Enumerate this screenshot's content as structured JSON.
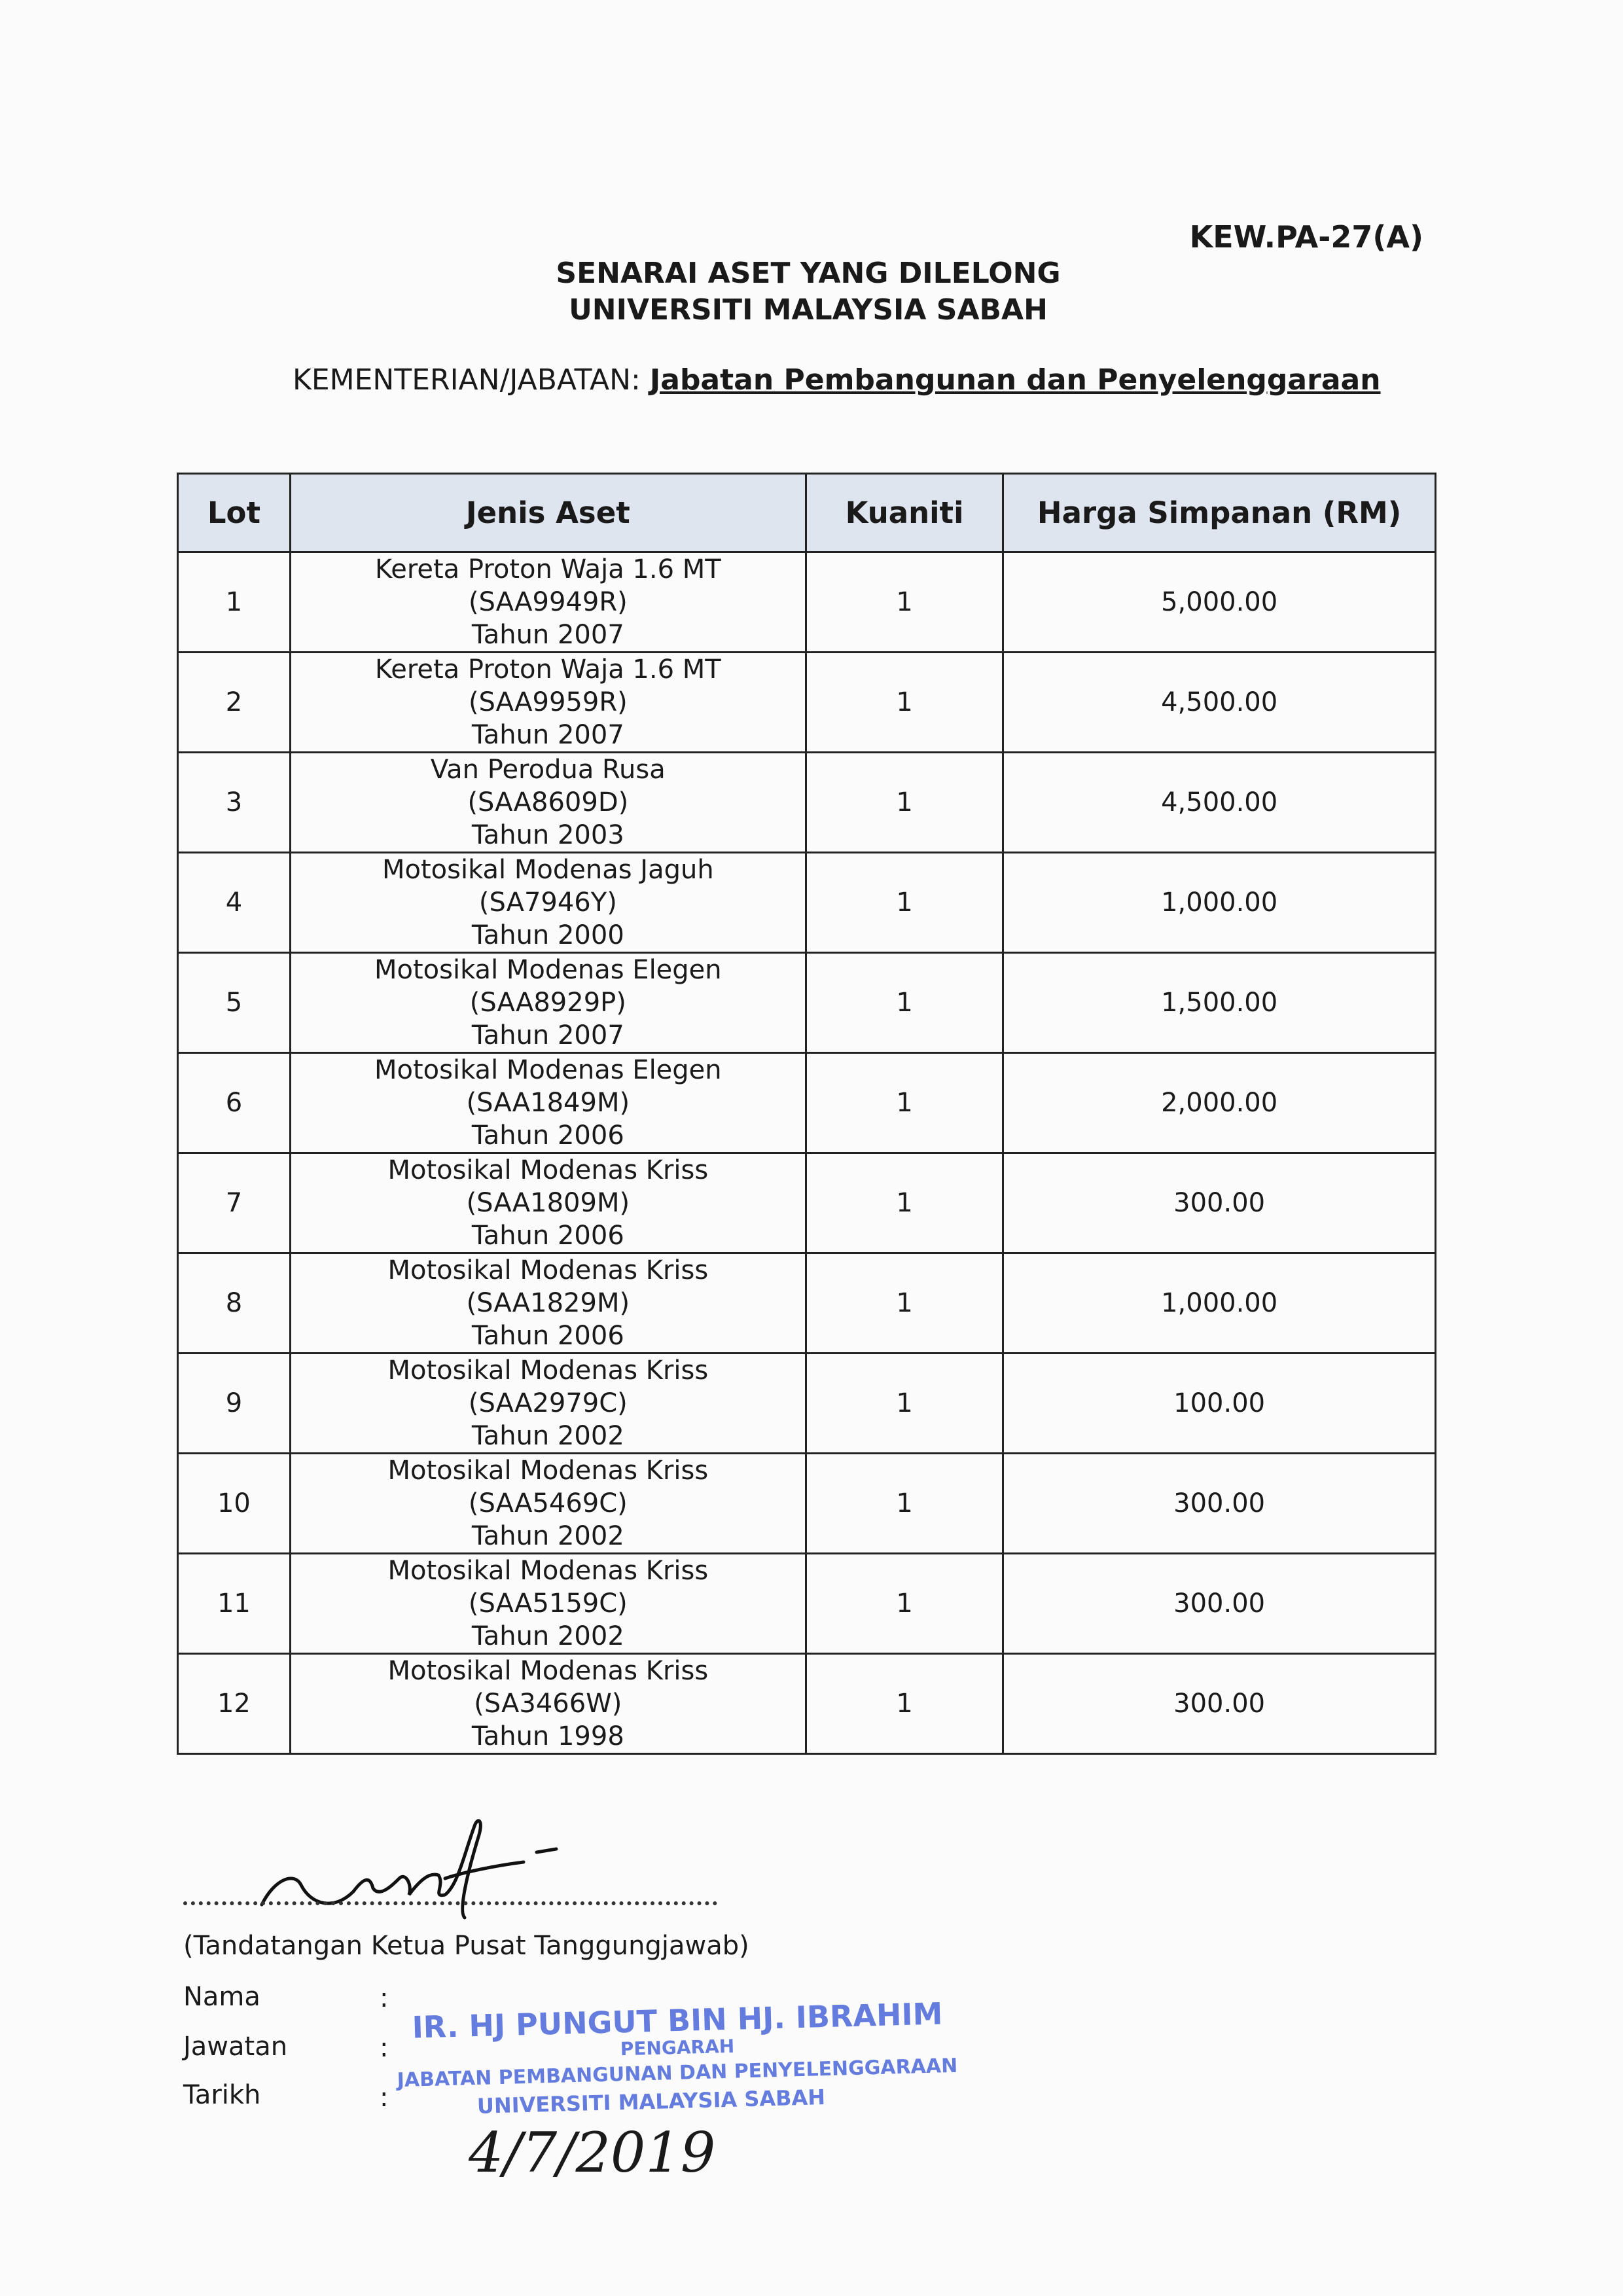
{
  "form_code": "KEW.PA-27(A)",
  "title_line1": "SENARAI ASET YANG DILELONG",
  "title_line2": "UNIVERSITI MALAYSIA SABAH",
  "department": {
    "label": "KEMENTERIAN/JABATAN:",
    "value": "Jabatan Pembangunan dan Penyelenggaraan"
  },
  "table": {
    "headers": [
      "Lot",
      "Jenis Aset",
      "Kuaniti",
      "Harga Simpanan (RM)"
    ],
    "rows": [
      {
        "lot": "1",
        "name": "Kereta Proton Waja 1.6 MT",
        "reg": "(SAA9949R)",
        "year": "Tahun 2007",
        "qty": "1",
        "price": "5,000.00"
      },
      {
        "lot": "2",
        "name": "Kereta Proton Waja 1.6 MT",
        "reg": "(SAA9959R)",
        "year": "Tahun 2007",
        "qty": "1",
        "price": "4,500.00"
      },
      {
        "lot": "3",
        "name": "Van Perodua Rusa",
        "reg": "(SAA8609D)",
        "year": "Tahun 2003",
        "qty": "1",
        "price": "4,500.00"
      },
      {
        "lot": "4",
        "name": "Motosikal Modenas Jaguh",
        "reg": "(SA7946Y)",
        "year": "Tahun 2000",
        "qty": "1",
        "price": "1,000.00"
      },
      {
        "lot": "5",
        "name": "Motosikal Modenas Elegen",
        "reg": "(SAA8929P)",
        "year": "Tahun 2007",
        "qty": "1",
        "price": "1,500.00"
      },
      {
        "lot": "6",
        "name": "Motosikal Modenas Elegen",
        "reg": "(SAA1849M)",
        "year": "Tahun 2006",
        "qty": "1",
        "price": "2,000.00"
      },
      {
        "lot": "7",
        "name": "Motosikal Modenas Kriss",
        "reg": "(SAA1809M)",
        "year": "Tahun 2006",
        "qty": "1",
        "price": "300.00"
      },
      {
        "lot": "8",
        "name": "Motosikal Modenas Kriss",
        "reg": "(SAA1829M)",
        "year": "Tahun 2006",
        "qty": "1",
        "price": "1,000.00"
      },
      {
        "lot": "9",
        "name": "Motosikal Modenas Kriss",
        "reg": "(SAA2979C)",
        "year": "Tahun 2002",
        "qty": "1",
        "price": "100.00"
      },
      {
        "lot": "10",
        "name": "Motosikal Modenas Kriss",
        "reg": "(SAA5469C)",
        "year": "Tahun 2002",
        "qty": "1",
        "price": "300.00"
      },
      {
        "lot": "11",
        "name": "Motosikal Modenas Kriss",
        "reg": "(SAA5159C)",
        "year": "Tahun 2002",
        "qty": "1",
        "price": "300.00"
      },
      {
        "lot": "12",
        "name": "Motosikal Modenas Kriss",
        "reg": "(SA3466W)",
        "year": "Tahun 1998",
        "qty": "1",
        "price": "300.00"
      }
    ]
  },
  "signature": {
    "caption": "(Tandatangan Ketua Pusat Tanggungjawab)",
    "labels": [
      "Nama",
      "Jawatan",
      "Tarikh"
    ],
    "colon": ":",
    "stamp": [
      "IR. HJ PUNGUT BIN HJ. IBRAHIM",
      "PENGARAH",
      "JABATAN PEMBANGUNAN DAN PENYELENGGARAAN",
      "UNIVERSITI MALAYSIA SABAH"
    ],
    "stamp_color": "#4a67d8",
    "handwritten_date": "4/7/2019"
  }
}
